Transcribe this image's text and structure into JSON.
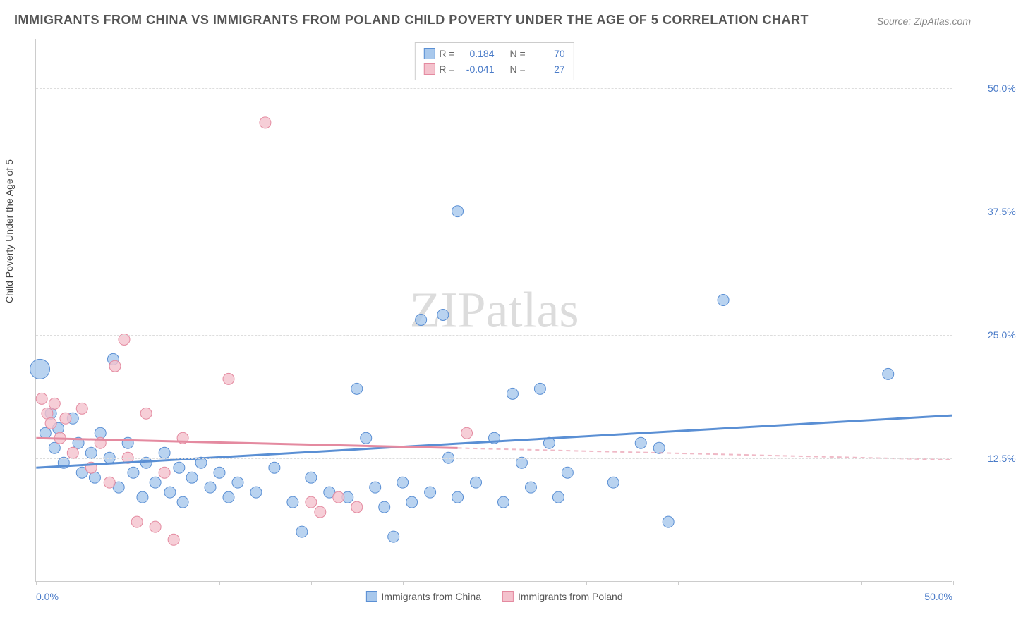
{
  "title": "IMMIGRANTS FROM CHINA VS IMMIGRANTS FROM POLAND CHILD POVERTY UNDER THE AGE OF 5 CORRELATION CHART",
  "source": "Source: ZipAtlas.com",
  "y_axis_label": "Child Poverty Under the Age of 5",
  "watermark": "ZIPatlas",
  "chart": {
    "type": "scatter",
    "xlim": [
      0,
      50
    ],
    "ylim": [
      0,
      55
    ],
    "y_ticks": [
      12.5,
      25.0,
      37.5,
      50.0
    ],
    "y_tick_labels": [
      "12.5%",
      "25.0%",
      "37.5%",
      "50.0%"
    ],
    "x_ticks": [
      0,
      5,
      10,
      15,
      20,
      25,
      30,
      35,
      40,
      45,
      50
    ],
    "x_corner_labels": [
      "0.0%",
      "50.0%"
    ],
    "grid_color": "#dddddd",
    "background_color": "#ffffff",
    "series": [
      {
        "name": "Immigrants from China",
        "color_fill": "#a8c8ec",
        "color_stroke": "#5a8fd4",
        "r_value": "0.184",
        "n_value": "70",
        "trend": {
          "x1": 0,
          "y1": 11.5,
          "x2": 50,
          "y2": 16.8,
          "dash_from_x": null
        },
        "points": [
          {
            "x": 0.2,
            "y": 21.5,
            "r": 14
          },
          {
            "x": 0.5,
            "y": 15.0,
            "r": 8
          },
          {
            "x": 0.8,
            "y": 17.0,
            "r": 8
          },
          {
            "x": 1.0,
            "y": 13.5,
            "r": 8
          },
          {
            "x": 1.2,
            "y": 15.5,
            "r": 8
          },
          {
            "x": 1.5,
            "y": 12.0,
            "r": 8
          },
          {
            "x": 2.0,
            "y": 16.5,
            "r": 8
          },
          {
            "x": 2.3,
            "y": 14.0,
            "r": 8
          },
          {
            "x": 2.5,
            "y": 11.0,
            "r": 8
          },
          {
            "x": 3.0,
            "y": 13.0,
            "r": 8
          },
          {
            "x": 3.2,
            "y": 10.5,
            "r": 8
          },
          {
            "x": 3.5,
            "y": 15.0,
            "r": 8
          },
          {
            "x": 4.0,
            "y": 12.5,
            "r": 8
          },
          {
            "x": 4.2,
            "y": 22.5,
            "r": 8
          },
          {
            "x": 4.5,
            "y": 9.5,
            "r": 8
          },
          {
            "x": 5.0,
            "y": 14.0,
            "r": 8
          },
          {
            "x": 5.3,
            "y": 11.0,
            "r": 8
          },
          {
            "x": 5.8,
            "y": 8.5,
            "r": 8
          },
          {
            "x": 6.0,
            "y": 12.0,
            "r": 8
          },
          {
            "x": 6.5,
            "y": 10.0,
            "r": 8
          },
          {
            "x": 7.0,
            "y": 13.0,
            "r": 8
          },
          {
            "x": 7.3,
            "y": 9.0,
            "r": 8
          },
          {
            "x": 7.8,
            "y": 11.5,
            "r": 8
          },
          {
            "x": 8.0,
            "y": 8.0,
            "r": 8
          },
          {
            "x": 8.5,
            "y": 10.5,
            "r": 8
          },
          {
            "x": 9.0,
            "y": 12.0,
            "r": 8
          },
          {
            "x": 9.5,
            "y": 9.5,
            "r": 8
          },
          {
            "x": 10.0,
            "y": 11.0,
            "r": 8
          },
          {
            "x": 10.5,
            "y": 8.5,
            "r": 8
          },
          {
            "x": 11.0,
            "y": 10.0,
            "r": 8
          },
          {
            "x": 12.0,
            "y": 9.0,
            "r": 8
          },
          {
            "x": 13.0,
            "y": 11.5,
            "r": 8
          },
          {
            "x": 14.0,
            "y": 8.0,
            "r": 8
          },
          {
            "x": 14.5,
            "y": 5.0,
            "r": 8
          },
          {
            "x": 15.0,
            "y": 10.5,
            "r": 8
          },
          {
            "x": 16.0,
            "y": 9.0,
            "r": 8
          },
          {
            "x": 17.0,
            "y": 8.5,
            "r": 8
          },
          {
            "x": 17.5,
            "y": 19.5,
            "r": 8
          },
          {
            "x": 18.0,
            "y": 14.5,
            "r": 8
          },
          {
            "x": 18.5,
            "y": 9.5,
            "r": 8
          },
          {
            "x": 19.0,
            "y": 7.5,
            "r": 8
          },
          {
            "x": 19.5,
            "y": 4.5,
            "r": 8
          },
          {
            "x": 20.0,
            "y": 10.0,
            "r": 8
          },
          {
            "x": 20.5,
            "y": 8.0,
            "r": 8
          },
          {
            "x": 21.0,
            "y": 26.5,
            "r": 8
          },
          {
            "x": 21.5,
            "y": 9.0,
            "r": 8
          },
          {
            "x": 22.2,
            "y": 27.0,
            "r": 8
          },
          {
            "x": 22.5,
            "y": 12.5,
            "r": 8
          },
          {
            "x": 23.0,
            "y": 8.5,
            "r": 8
          },
          {
            "x": 23.0,
            "y": 37.5,
            "r": 8
          },
          {
            "x": 24.0,
            "y": 10.0,
            "r": 8
          },
          {
            "x": 25.0,
            "y": 14.5,
            "r": 8
          },
          {
            "x": 25.5,
            "y": 8.0,
            "r": 8
          },
          {
            "x": 26.0,
            "y": 19.0,
            "r": 8
          },
          {
            "x": 26.5,
            "y": 12.0,
            "r": 8
          },
          {
            "x": 27.0,
            "y": 9.5,
            "r": 8
          },
          {
            "x": 27.5,
            "y": 19.5,
            "r": 8
          },
          {
            "x": 28.0,
            "y": 14.0,
            "r": 8
          },
          {
            "x": 28.5,
            "y": 8.5,
            "r": 8
          },
          {
            "x": 29.0,
            "y": 11.0,
            "r": 8
          },
          {
            "x": 31.5,
            "y": 10.0,
            "r": 8
          },
          {
            "x": 33.0,
            "y": 14.0,
            "r": 8
          },
          {
            "x": 34.0,
            "y": 13.5,
            "r": 8
          },
          {
            "x": 34.5,
            "y": 6.0,
            "r": 8
          },
          {
            "x": 37.5,
            "y": 28.5,
            "r": 8
          },
          {
            "x": 46.5,
            "y": 21.0,
            "r": 8
          }
        ]
      },
      {
        "name": "Immigrants from Poland",
        "color_fill": "#f4c2cd",
        "color_stroke": "#e48aa0",
        "r_value": "-0.041",
        "n_value": "27",
        "trend": {
          "x1": 0,
          "y1": 14.5,
          "x2": 50,
          "y2": 12.3,
          "dash_from_x": 23
        },
        "points": [
          {
            "x": 0.3,
            "y": 18.5,
            "r": 8
          },
          {
            "x": 0.6,
            "y": 17.0,
            "r": 8
          },
          {
            "x": 0.8,
            "y": 16.0,
            "r": 8
          },
          {
            "x": 1.0,
            "y": 18.0,
            "r": 8
          },
          {
            "x": 1.3,
            "y": 14.5,
            "r": 8
          },
          {
            "x": 1.6,
            "y": 16.5,
            "r": 8
          },
          {
            "x": 2.0,
            "y": 13.0,
            "r": 8
          },
          {
            "x": 2.5,
            "y": 17.5,
            "r": 8
          },
          {
            "x": 3.0,
            "y": 11.5,
            "r": 8
          },
          {
            "x": 3.5,
            "y": 14.0,
            "r": 8
          },
          {
            "x": 4.0,
            "y": 10.0,
            "r": 8
          },
          {
            "x": 4.3,
            "y": 21.8,
            "r": 8
          },
          {
            "x": 4.8,
            "y": 24.5,
            "r": 8
          },
          {
            "x": 5.0,
            "y": 12.5,
            "r": 8
          },
          {
            "x": 5.5,
            "y": 6.0,
            "r": 8
          },
          {
            "x": 6.0,
            "y": 17.0,
            "r": 8
          },
          {
            "x": 6.5,
            "y": 5.5,
            "r": 8
          },
          {
            "x": 7.0,
            "y": 11.0,
            "r": 8
          },
          {
            "x": 7.5,
            "y": 4.2,
            "r": 8
          },
          {
            "x": 8.0,
            "y": 14.5,
            "r": 8
          },
          {
            "x": 10.5,
            "y": 20.5,
            "r": 8
          },
          {
            "x": 12.5,
            "y": 46.5,
            "r": 8
          },
          {
            "x": 15.0,
            "y": 8.0,
            "r": 8
          },
          {
            "x": 15.5,
            "y": 7.0,
            "r": 8
          },
          {
            "x": 16.5,
            "y": 8.5,
            "r": 8
          },
          {
            "x": 17.5,
            "y": 7.5,
            "r": 8
          },
          {
            "x": 23.5,
            "y": 15.0,
            "r": 8
          }
        ]
      }
    ]
  },
  "legend_top_labels": {
    "r": "R =",
    "n": "N ="
  },
  "legend_bottom": [
    {
      "label": "Immigrants from China"
    },
    {
      "label": "Immigrants from Poland"
    }
  ]
}
